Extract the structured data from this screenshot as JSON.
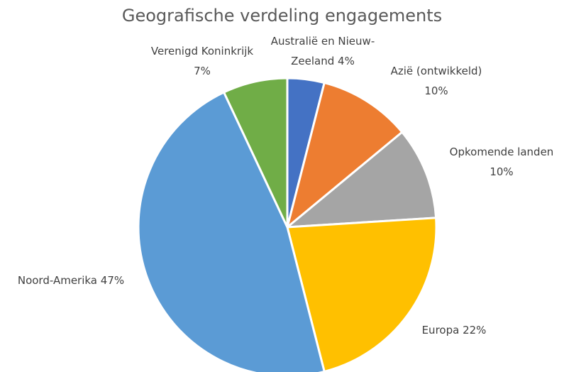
{
  "chart_data": {
    "type": "pie",
    "title": "Geografische verdeling engagements",
    "categories": [
      "Australië en Nieuw-Zeeland",
      "Azië (ontwikkeld)",
      "Opkomende landen",
      "Europa",
      "Noord-Amerika",
      "Verenigd Koninkrijk"
    ],
    "values": [
      4,
      10,
      10,
      22,
      47,
      7
    ],
    "value_labels": [
      "4%",
      "10%",
      "10%",
      "22%",
      "47%",
      "7%"
    ],
    "colors": [
      "#4472c4",
      "#ed7d31",
      "#a5a5a5",
      "#ffc000",
      "#5b9bd5",
      "#70ad47"
    ]
  }
}
